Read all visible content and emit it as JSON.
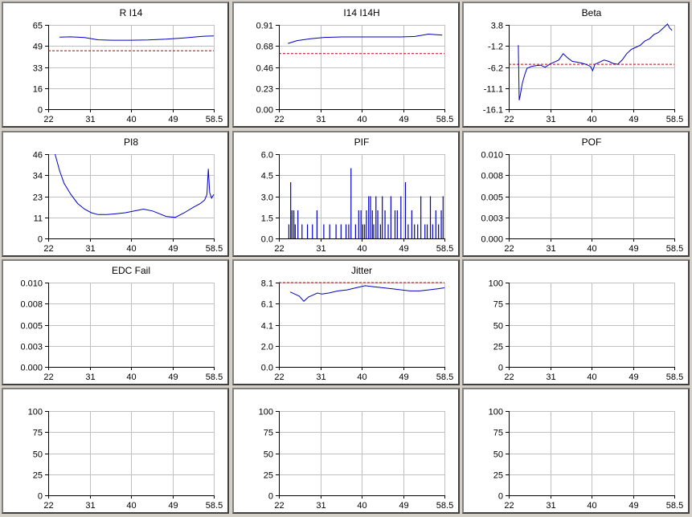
{
  "chart_data": [
    {
      "id": "p0",
      "title": "R I14",
      "type": "line",
      "x_ticks": [
        "22",
        "31",
        "40",
        "49",
        "58.5"
      ],
      "y_ticks": [
        "0",
        "16",
        "33",
        "49",
        "65"
      ],
      "xlim": [
        22,
        58.5
      ],
      "ylim": [
        0,
        65
      ],
      "line_color": "#0000c0",
      "threshold": 45,
      "threshold_color": "#c00000",
      "series": [
        {
          "x": [
            24.5,
            27,
            30,
            33,
            36,
            40,
            44,
            48,
            52,
            56,
            58.5
          ],
          "y": [
            55.5,
            55.8,
            55.2,
            53.5,
            53.2,
            53.2,
            53.4,
            54.0,
            55.0,
            56.2,
            56.5
          ]
        }
      ]
    },
    {
      "id": "p1",
      "title": "I14 I14H",
      "type": "line",
      "x_ticks": [
        "22",
        "31",
        "40",
        "49",
        "58.5"
      ],
      "y_ticks": [
        "0.00",
        "0.23",
        "0.46",
        "0.68",
        "0.91"
      ],
      "xlim": [
        22,
        58.5
      ],
      "ylim": [
        0,
        0.91
      ],
      "line_color": "#0000c0",
      "threshold": 0.6,
      "threshold_color": "#c00000",
      "series": [
        {
          "x": [
            24,
            26,
            29,
            32,
            36,
            40,
            45,
            49,
            52,
            55,
            58
          ],
          "y": [
            0.71,
            0.74,
            0.76,
            0.775,
            0.78,
            0.78,
            0.78,
            0.78,
            0.785,
            0.81,
            0.8
          ]
        }
      ]
    },
    {
      "id": "p2",
      "title": "Beta",
      "type": "line",
      "x_ticks": [
        "22",
        "31",
        "40",
        "49",
        "58.5"
      ],
      "y_ticks": [
        "-16.1",
        "-11.1",
        "-6.2",
        "-1.2",
        "3.8"
      ],
      "xlim": [
        22,
        58.5
      ],
      "ylim": [
        -16.1,
        3.8
      ],
      "line_color": "#0000c0",
      "threshold": -5.5,
      "threshold_color": "#c00000",
      "series": [
        {
          "x": [
            24.1,
            24.3,
            24.5,
            25,
            25.5,
            26,
            27,
            28,
            29,
            30,
            31,
            32,
            33,
            34,
            35,
            36,
            37,
            38,
            39,
            40,
            40.5,
            41,
            42,
            43,
            44,
            45,
            46,
            47,
            48,
            49,
            50,
            51,
            52,
            53,
            54,
            55,
            56,
            57,
            57.5,
            58
          ],
          "y": [
            -1,
            -14,
            -13,
            -10,
            -8,
            -6.5,
            -6,
            -5.8,
            -5.7,
            -6.2,
            -5.5,
            -5,
            -4.5,
            -3,
            -4,
            -4.8,
            -5,
            -5.2,
            -5.5,
            -6,
            -7,
            -5.5,
            -5,
            -4.5,
            -4.8,
            -5.3,
            -5.5,
            -4.5,
            -3,
            -2,
            -1.5,
            -1,
            0,
            0.5,
            1.5,
            2,
            3,
            4,
            3,
            2.5
          ]
        }
      ]
    },
    {
      "id": "p3",
      "title": "PI8",
      "type": "line",
      "x_ticks": [
        "22",
        "31",
        "40",
        "49",
        "58.5"
      ],
      "y_ticks": [
        "0",
        "11",
        "23",
        "34",
        "46"
      ],
      "xlim": [
        22,
        58.5
      ],
      "ylim": [
        0,
        46
      ],
      "line_color": "#0000c0",
      "series": [
        {
          "x": [
            23.5,
            24.5,
            25.5,
            27,
            28.5,
            30,
            31.5,
            33,
            35,
            37,
            39,
            41,
            43,
            45,
            46.5,
            48,
            50,
            52,
            54,
            55.5,
            56.5,
            57,
            57.3,
            57.6,
            58,
            58.5
          ],
          "y": [
            46,
            37,
            30,
            24,
            19,
            16,
            14,
            13,
            13,
            13.5,
            14,
            15,
            16,
            15,
            13.5,
            12,
            11.5,
            14,
            17,
            19,
            21,
            24,
            38,
            25,
            22,
            24
          ]
        }
      ]
    },
    {
      "id": "p4",
      "title": "PIF",
      "type": "spikes",
      "x_ticks": [
        "22",
        "31",
        "40",
        "49",
        "58.5"
      ],
      "y_ticks": [
        "0.0",
        "1.5",
        "3.0",
        "4.5",
        "6.0"
      ],
      "xlim": [
        22,
        58.5
      ],
      "ylim": [
        0,
        6
      ],
      "line_color": "#0000c0",
      "series": [
        {
          "x": [
            24.2,
            24.6,
            24.9,
            25.3,
            25.6,
            26.2,
            27.1,
            28.3,
            29.4,
            30.4,
            31.9,
            33.2,
            34.6,
            35.7,
            36.8,
            37.4,
            37.9,
            38.9,
            39.6,
            40.1,
            40.5,
            40.9,
            41.3,
            41.8,
            42.2,
            42.6,
            42.9,
            43.4,
            43.8,
            44.4,
            44.8,
            45.4,
            46.1,
            46.7,
            47.6,
            48.1,
            48.9,
            49.9,
            50.5,
            51.3,
            51.9,
            52.6,
            53.3,
            54.2,
            54.7,
            55.4,
            55.9,
            56.6,
            57.2,
            57.8,
            58.2
          ],
          "y": [
            1,
            4,
            2,
            2,
            1,
            2,
            1,
            1,
            1,
            2,
            1,
            1,
            1,
            1,
            1,
            1,
            5,
            1,
            2,
            2,
            1,
            1,
            2,
            3,
            3,
            2,
            1,
            3,
            2,
            1,
            3,
            2,
            1,
            3,
            2,
            2,
            3,
            4,
            1,
            2,
            1,
            1,
            3,
            1,
            1,
            3,
            1,
            2,
            1,
            2,
            3
          ]
        }
      ]
    },
    {
      "id": "p5",
      "title": "POF",
      "type": "empty",
      "x_ticks": [
        "22",
        "31",
        "40",
        "49",
        "58.5"
      ],
      "y_ticks": [
        "0.000",
        "0.003",
        "0.005",
        "0.008",
        "0.010"
      ],
      "xlim": [
        22,
        58.5
      ],
      "ylim": [
        0,
        0.01
      ],
      "line_color": "#0000c0",
      "series": []
    },
    {
      "id": "p6",
      "title": "EDC Fail",
      "type": "empty",
      "x_ticks": [
        "22",
        "31",
        "40",
        "49",
        "58.5"
      ],
      "y_ticks": [
        "0.000",
        "0.003",
        "0.005",
        "0.008",
        "0.010"
      ],
      "xlim": [
        22,
        58.5
      ],
      "ylim": [
        0,
        0.01
      ],
      "line_color": "#0000c0",
      "series": []
    },
    {
      "id": "p7",
      "title": "Jitter",
      "type": "line",
      "x_ticks": [
        "22",
        "31",
        "40",
        "49",
        "58.5"
      ],
      "y_ticks": [
        "0.0",
        "2.0",
        "4.1",
        "6.1",
        "8.1"
      ],
      "xlim": [
        22,
        58.5
      ],
      "ylim": [
        0,
        8.1
      ],
      "line_color": "#0000c0",
      "threshold": 8.1,
      "threshold_color": "#c00000",
      "series": [
        {
          "x": [
            24.5,
            25.5,
            26.5,
            27.5,
            28.5,
            29.5,
            30.5,
            31.5,
            33,
            35,
            37,
            39,
            41,
            43,
            45,
            47,
            49,
            51,
            53,
            55,
            57,
            58.5
          ],
          "y": [
            7.2,
            7.0,
            6.8,
            6.3,
            6.7,
            6.9,
            7.1,
            7.0,
            7.1,
            7.3,
            7.4,
            7.6,
            7.8,
            7.7,
            7.6,
            7.5,
            7.4,
            7.3,
            7.3,
            7.4,
            7.5,
            7.6
          ]
        }
      ]
    },
    {
      "id": "p8",
      "title": "",
      "type": "empty",
      "x_ticks": [
        "22",
        "31",
        "40",
        "49",
        "58.5"
      ],
      "y_ticks": [
        "0",
        "25",
        "50",
        "75",
        "100"
      ],
      "xlim": [
        22,
        58.5
      ],
      "ylim": [
        0,
        100
      ],
      "line_color": "#0000c0",
      "series": []
    },
    {
      "id": "p9",
      "title": "",
      "type": "empty",
      "x_ticks": [
        "22",
        "31",
        "40",
        "49",
        "58.5"
      ],
      "y_ticks": [
        "0",
        "25",
        "50",
        "75",
        "100"
      ],
      "xlim": [
        22,
        58.5
      ],
      "ylim": [
        0,
        100
      ],
      "line_color": "#0000c0",
      "series": []
    },
    {
      "id": "p10",
      "title": "",
      "type": "empty",
      "x_ticks": [
        "22",
        "31",
        "40",
        "49",
        "58.5"
      ],
      "y_ticks": [
        "0",
        "25",
        "50",
        "75",
        "100"
      ],
      "xlim": [
        22,
        58.5
      ],
      "ylim": [
        0,
        100
      ],
      "line_color": "#0000c0",
      "series": []
    },
    {
      "id": "p11",
      "title": "",
      "type": "empty",
      "x_ticks": [
        "22",
        "31",
        "40",
        "49",
        "58.5"
      ],
      "y_ticks": [
        "0",
        "25",
        "50",
        "75",
        "100"
      ],
      "xlim": [
        22,
        58.5
      ],
      "ylim": [
        0,
        100
      ],
      "line_color": "#0000c0",
      "series": []
    }
  ]
}
